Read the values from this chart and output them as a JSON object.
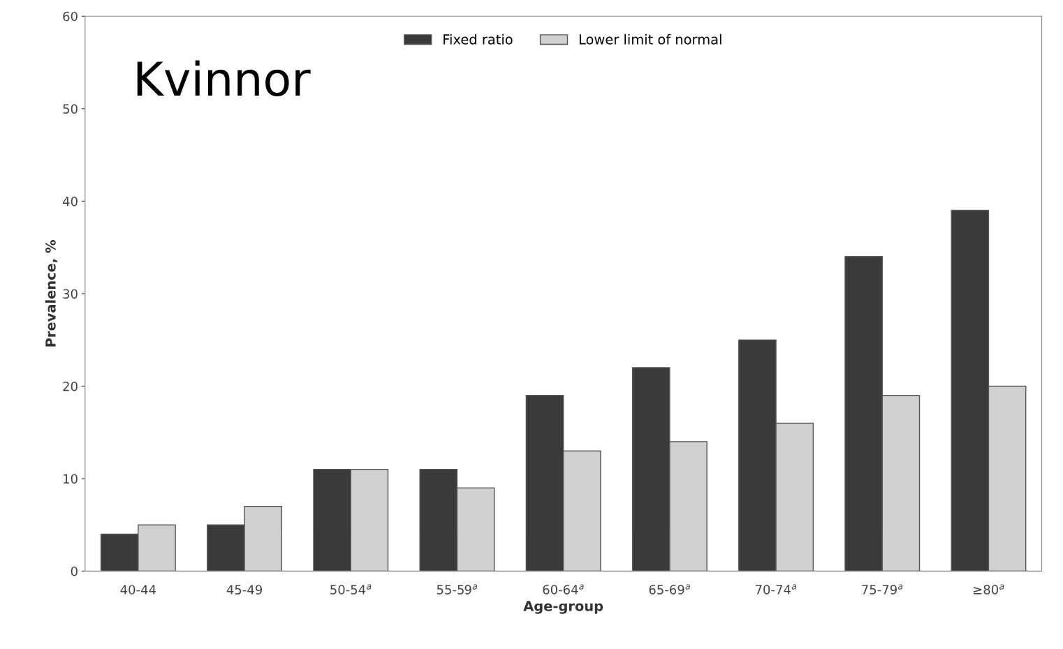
{
  "chart_data": {
    "type": "bar",
    "xlabel": "Age-group",
    "ylabel": "Prevalence, %",
    "categories": [
      "40-44",
      "45-49",
      "50-54$^{a}$",
      "55-59$^{a}$",
      "60-64$^{a}$",
      "65-69$^{a}$",
      "70-74$^{a}$",
      "75-79$^{a}$",
      "≥80$^{a}$"
    ],
    "series": [
      {
        "name": "Fixed ratio",
        "color": "#3a3a3a",
        "values": [
          4,
          5,
          11,
          11,
          19,
          22,
          25,
          34,
          39
        ]
      },
      {
        "name": "Lower limit of normal",
        "color": "#d0d0d0",
        "values": [
          5,
          7,
          11,
          9,
          13,
          14,
          16,
          19,
          20
        ]
      }
    ],
    "ylim": [
      0,
      60
    ],
    "yticks": [
      0,
      10,
      20,
      30,
      40,
      50,
      60
    ],
    "grid": false,
    "legend": "top",
    "annotations": [
      "Kvinnor"
    ]
  }
}
